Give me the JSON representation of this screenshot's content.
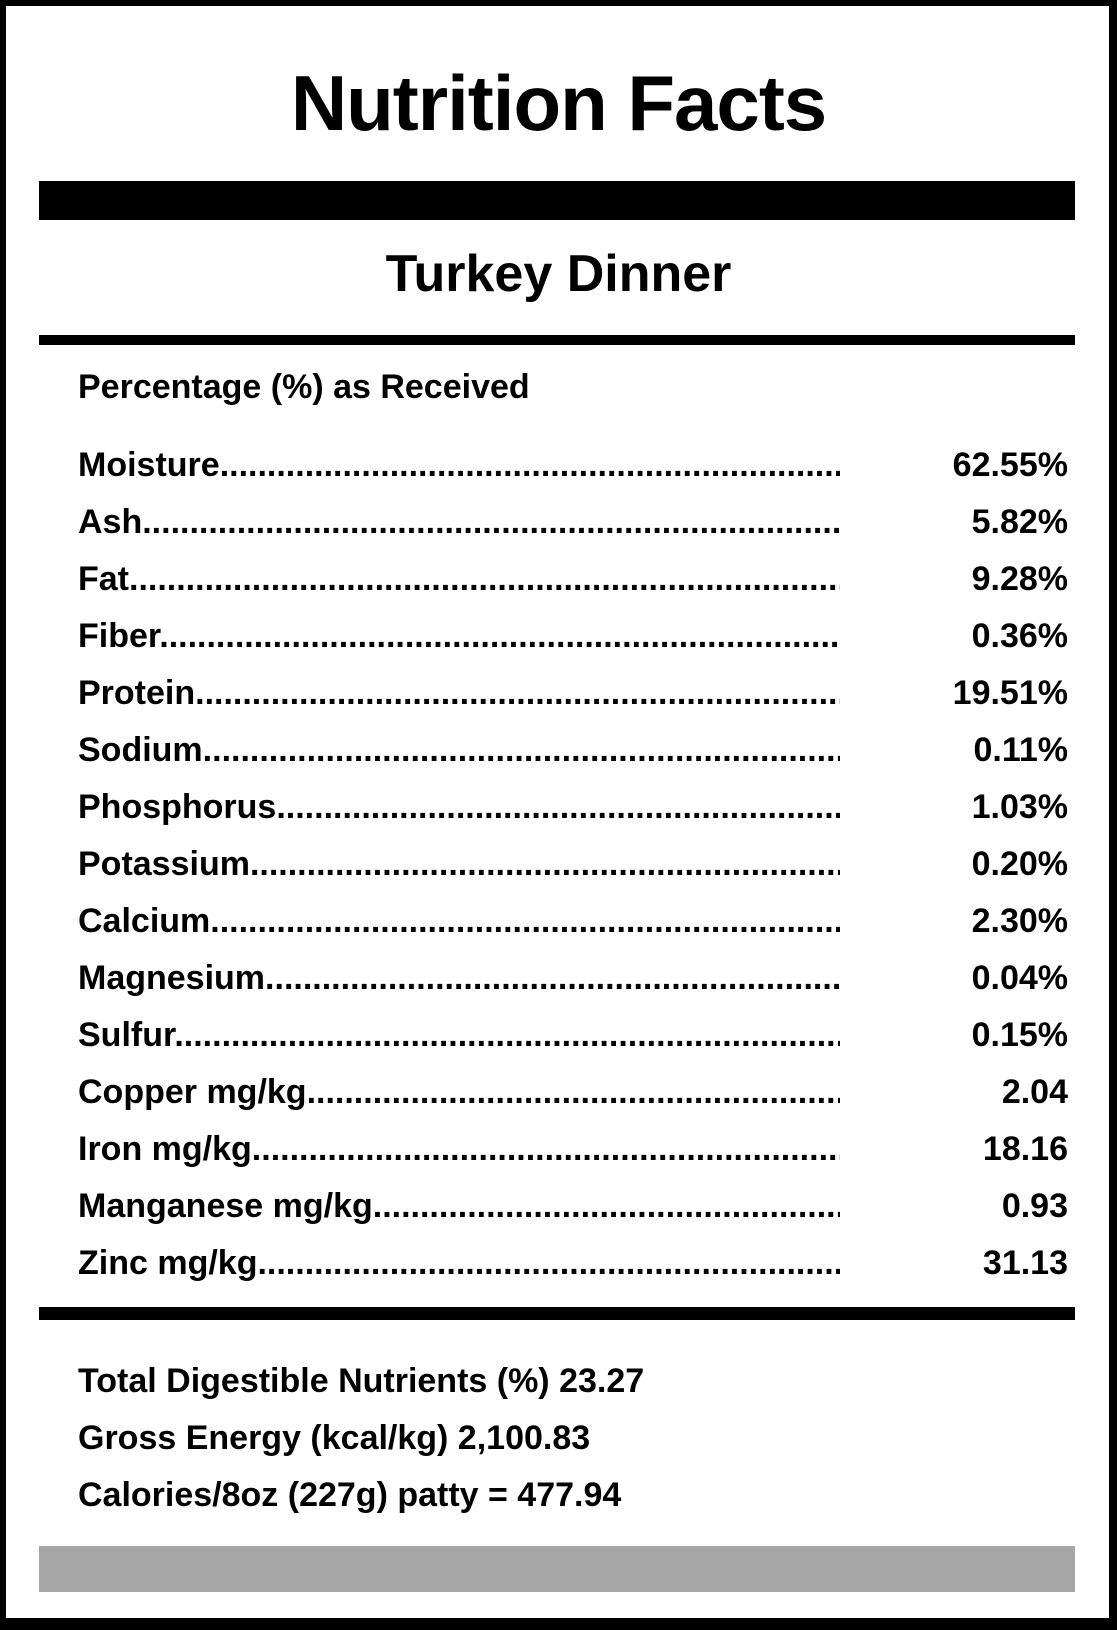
{
  "label": {
    "title": "Nutrition Facts",
    "product": "Turkey Dinner",
    "section_label": "Percentage (%) as Received",
    "nutrients": [
      {
        "name": "Moisture",
        "value": "62.55%"
      },
      {
        "name": "Ash",
        "value": "5.82%"
      },
      {
        "name": "Fat",
        "value": "9.28%"
      },
      {
        "name": "Fiber",
        "value": "0.36%"
      },
      {
        "name": "Protein",
        "value": "19.51%"
      },
      {
        "name": "Sodium",
        "value": "0.11%"
      },
      {
        "name": "Phosphorus",
        "value": "1.03%"
      },
      {
        "name": "Potassium",
        "value": "0.20%"
      },
      {
        "name": "Calcium",
        "value": "2.30%"
      },
      {
        "name": "Magnesium",
        "value": "0.04%"
      },
      {
        "name": "Sulfur",
        "value": "0.15%"
      },
      {
        "name": "Copper mg/kg",
        "value": "2.04"
      },
      {
        "name": "Iron mg/kg",
        "value": "18.16"
      },
      {
        "name": "Manganese mg/kg",
        "value": "0.93"
      },
      {
        "name": "Zinc mg/kg",
        "value": "31.13"
      }
    ],
    "summary": [
      "Total Digestible Nutrients (%) 23.27",
      "Gross Energy (kcal/kg) 2,100.83",
      "Calories/8oz (227g) patty = 477.94"
    ]
  }
}
